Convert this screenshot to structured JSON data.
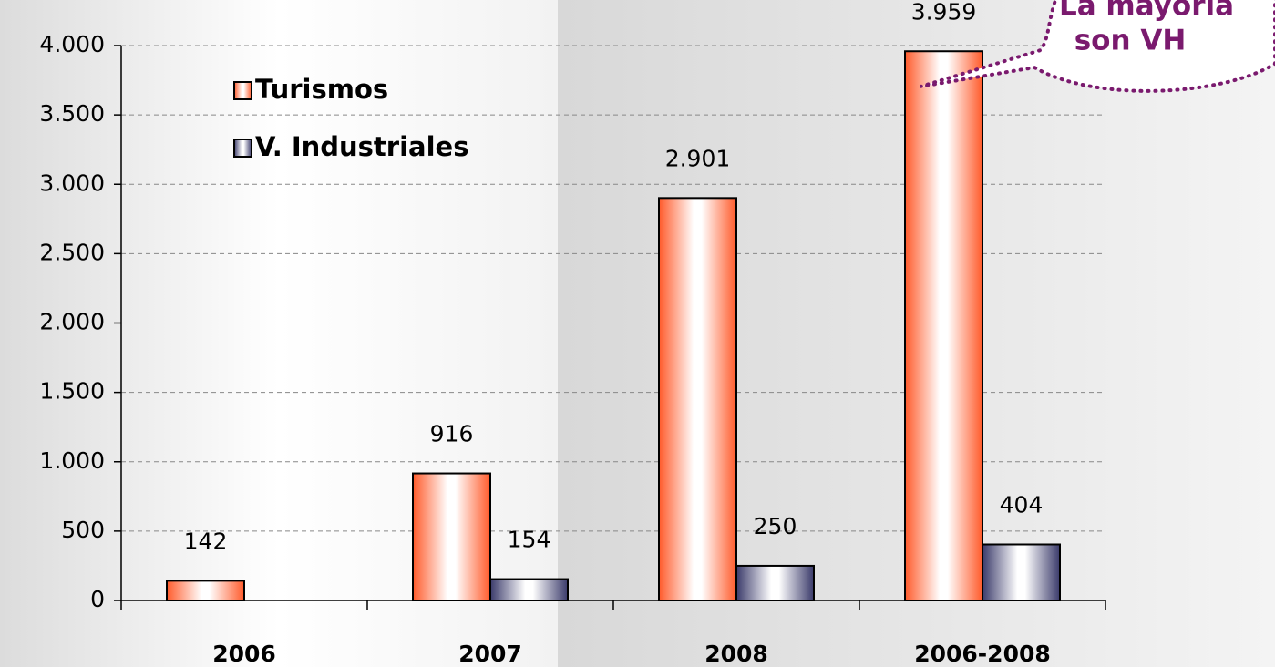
{
  "chart_data": {
    "type": "bar",
    "categories": [
      "2006",
      "2007",
      "2008",
      "2006-2008"
    ],
    "series": [
      {
        "name": "Turismos",
        "color": "#ff5a2a",
        "values": [
          142,
          916,
          2901,
          3959
        ],
        "value_labels": [
          "142",
          "916",
          "2.901",
          "3.959"
        ]
      },
      {
        "name": "V. Industriales",
        "color": "#3a3a6a",
        "values": [
          null,
          154,
          250,
          404
        ],
        "value_labels": [
          null,
          "154",
          "250",
          "404"
        ]
      }
    ],
    "ylim": [
      0,
      4000
    ],
    "yticks": [
      0,
      500,
      {
        "value": 1000,
        "label": "1.000"
      },
      {
        "value": 1500,
        "label": "1.500"
      },
      {
        "value": 2000,
        "label": "2.000"
      },
      {
        "value": 2500,
        "label": "2.500"
      },
      {
        "value": 3000,
        "label": "3.000"
      },
      {
        "value": 3500,
        "label": "3.500"
      },
      {
        "value": 4000,
        "label": "4.000"
      }
    ],
    "grid": true,
    "legend": "upper left",
    "annotations": [
      "La mayoría",
      "son VH"
    ]
  }
}
